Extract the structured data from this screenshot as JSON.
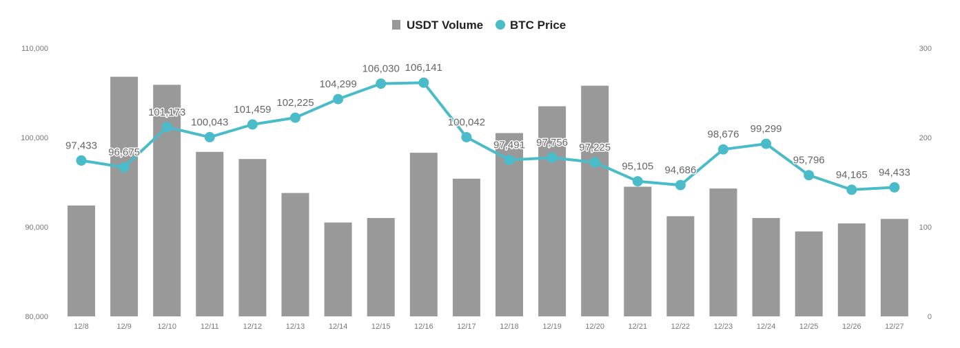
{
  "chart_data": {
    "type": "bar+line",
    "categories": [
      "12/8",
      "12/9",
      "12/10",
      "12/11",
      "12/12",
      "12/13",
      "12/14",
      "12/15",
      "12/16",
      "12/17",
      "12/18",
      "12/19",
      "12/20",
      "12/21",
      "12/22",
      "12/23",
      "12/24",
      "12/25",
      "12/26",
      "12/27"
    ],
    "series": [
      {
        "name": "USDT Volume",
        "type": "bar",
        "axis": "right",
        "color": "#999999",
        "values": [
          124,
          268,
          259,
          184,
          176,
          138,
          105,
          110,
          183,
          154,
          205,
          235,
          258,
          145,
          112,
          143,
          110,
          95,
          104,
          109
        ]
      },
      {
        "name": "BTC Price",
        "type": "line",
        "axis": "left",
        "color": "#4ABBC8",
        "values": [
          97433,
          96675,
          101173,
          100043,
          101459,
          102225,
          104299,
          106030,
          106141,
          100042,
          97491,
          97756,
          97225,
          95105,
          94686,
          98676,
          99299,
          95796,
          94165,
          94433
        ],
        "labels": [
          "97,433",
          "96,675",
          "101,173",
          "100,043",
          "101,459",
          "102,225",
          "104,299",
          "106,030",
          "106,141",
          "100,042",
          "97,491",
          "97,756",
          "97,225",
          "95,105",
          "94,686",
          "98,676",
          "99,299",
          "95,796",
          "94,165",
          "94,433"
        ]
      }
    ],
    "y_left": {
      "min": 80000,
      "max": 110000,
      "ticks": [
        "80,000",
        "90,000",
        "100,000",
        "110,000"
      ]
    },
    "y_right": {
      "min": 0,
      "max": 300,
      "ticks": [
        "0",
        "100",
        "200",
        "300"
      ]
    },
    "legend": {
      "position": "top-center",
      "items": [
        "USDT Volume",
        "BTC Price"
      ]
    },
    "grid": false
  }
}
